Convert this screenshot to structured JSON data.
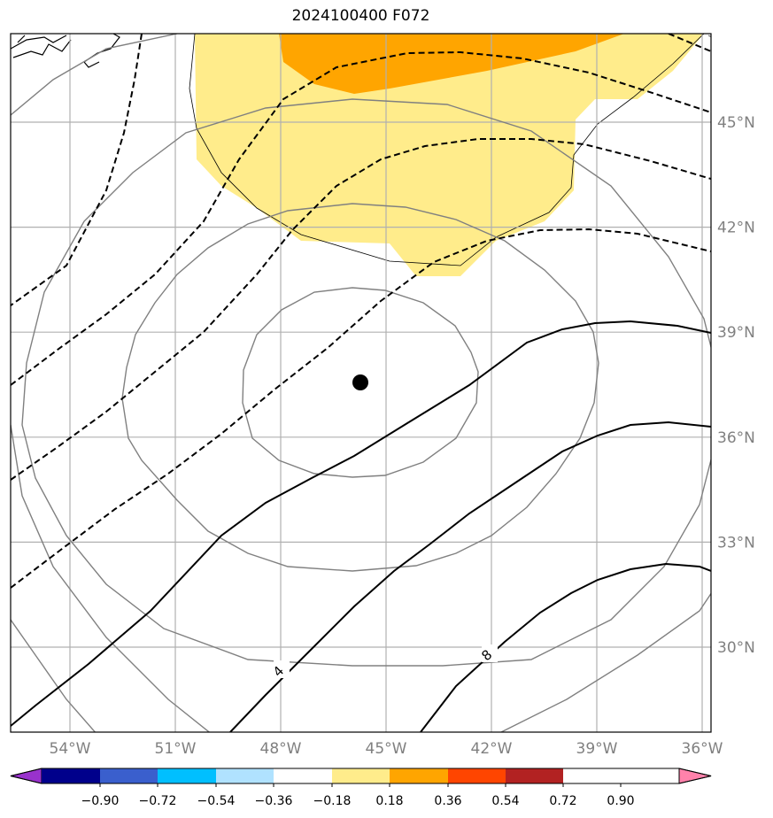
{
  "title": "2024100400 F072",
  "map": {
    "lon_ticks": [
      {
        "label": "54°W",
        "value": -54
      },
      {
        "label": "51°W",
        "value": -51
      },
      {
        "label": "48°W",
        "value": -48
      },
      {
        "label": "45°W",
        "value": -45
      },
      {
        "label": "42°W",
        "value": -42
      },
      {
        "label": "39°W",
        "value": -39
      },
      {
        "label": "36°W",
        "value": -36
      }
    ],
    "lat_ticks": [
      {
        "label": "45°N",
        "value": 45
      },
      {
        "label": "42°N",
        "value": 42
      },
      {
        "label": "39°N",
        "value": 39
      },
      {
        "label": "36°N",
        "value": 36
      },
      {
        "label": "33°N",
        "value": 33
      },
      {
        "label": "30°N",
        "value": 30
      }
    ],
    "contour_labels": [
      {
        "text": "4",
        "lon": -48,
        "lat": 29.4
      },
      {
        "text": "8",
        "lon": -42,
        "lat": 29.9
      }
    ],
    "center_marker": {
      "lon": -45.7,
      "lat": 37.6
    }
  },
  "colorbar": {
    "colors": [
      "#9932cc",
      "#00008b",
      "#3a5fcd",
      "#00bfff",
      "#b0e2ff",
      "#ffffff",
      "#ffec8b",
      "#ffa500",
      "#ff4500",
      "#b22222",
      "#ff82ab"
    ],
    "tick_labels": [
      "−0.90",
      "−0.72",
      "−0.54",
      "−0.36",
      "−0.18",
      "0.18",
      "0.36",
      "0.54",
      "0.72",
      "0.90"
    ]
  }
}
